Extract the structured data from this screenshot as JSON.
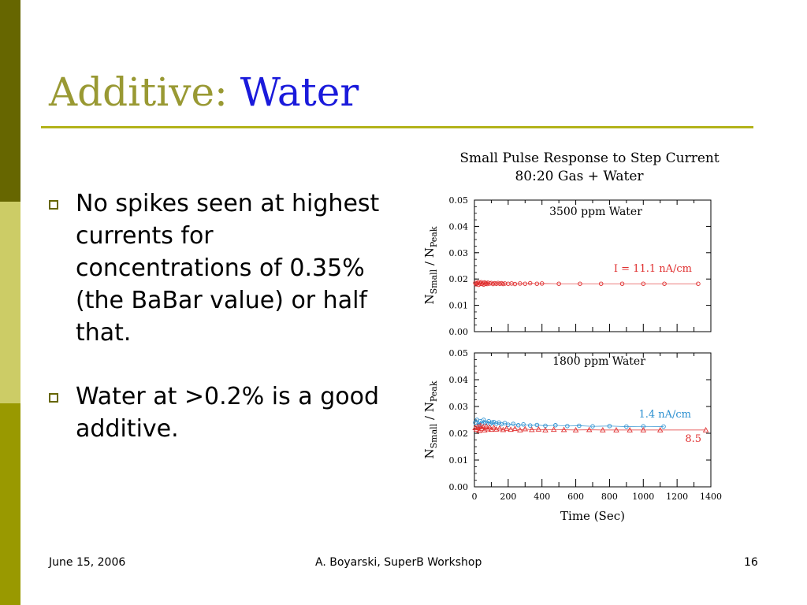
{
  "slide": {
    "title_part1": "Additive:",
    "title_part2": "Water",
    "bullets": [
      "No spikes seen at highest currents for concentrations of 0.35% (the BaBar value) or half that.",
      "Water at >0.2% is a good additive."
    ],
    "footer": {
      "date": "June 15, 2006",
      "author": "A. Boyarski,  SuperB Workshop",
      "page": "16"
    }
  },
  "colors": {
    "sidebar": [
      "#666600",
      "#cccc66",
      "#999900"
    ],
    "title_part1": "#999933",
    "title_part2": "#1a1adb",
    "rule": "#b3b31a",
    "red_series": "#e03030",
    "blue_series": "#2a8fd0"
  },
  "chart_data": [
    {
      "type": "scatter",
      "title": "Small Pulse Response to Step Current",
      "subtitle": "80:20 Gas  +  Water",
      "panel_label": "3500 ppm   Water",
      "ylabel_main": "N",
      "ylabel_sub1": "Small",
      "ylabel_mid": " / N",
      "ylabel_sub2": "Peak",
      "xlim": [
        0,
        1400
      ],
      "ylim": [
        0,
        0.05
      ],
      "yticks": [
        "0.00",
        "0.01",
        "0.02",
        "0.03",
        "0.04",
        "0.05"
      ],
      "series": [
        {
          "name": "I = 11.1 nA/cm",
          "color": "#e03030",
          "marker": "circle",
          "x": [
            5,
            10,
            15,
            20,
            25,
            30,
            35,
            40,
            45,
            50,
            55,
            60,
            65,
            70,
            75,
            80,
            90,
            100,
            110,
            120,
            130,
            140,
            150,
            160,
            170,
            180,
            200,
            220,
            240,
            270,
            300,
            330,
            370,
            400,
            500,
            625,
            750,
            875,
            1000,
            1125,
            1325
          ],
          "y": [
            0.0185,
            0.018,
            0.0183,
            0.0187,
            0.0178,
            0.0186,
            0.0182,
            0.0188,
            0.0181,
            0.0185,
            0.0179,
            0.0187,
            0.0182,
            0.0184,
            0.0181,
            0.0186,
            0.0183,
            0.0185,
            0.0181,
            0.0184,
            0.0182,
            0.0185,
            0.0182,
            0.0184,
            0.0181,
            0.0183,
            0.0182,
            0.0183,
            0.0181,
            0.0183,
            0.0182,
            0.0184,
            0.0182,
            0.0183,
            0.0182,
            0.0182,
            0.0182,
            0.0182,
            0.0182,
            0.0182,
            0.0182
          ]
        }
      ]
    },
    {
      "type": "scatter",
      "panel_label": "1800 ppm   Water",
      "ylabel_main": "N",
      "ylabel_sub1": "Small",
      "ylabel_mid": " / N",
      "ylabel_sub2": "Peak",
      "xlabel": "Time (Sec)",
      "xlim": [
        0,
        1400
      ],
      "ylim": [
        0,
        0.05
      ],
      "xticks": [
        "0",
        "200",
        "400",
        "600",
        "800",
        "1000",
        "1200",
        "1400"
      ],
      "yticks": [
        "0.00",
        "0.01",
        "0.02",
        "0.03",
        "0.04",
        "0.05"
      ],
      "series": [
        {
          "name": "1.4 nA/cm",
          "color": "#2a8fd0",
          "marker": "circle",
          "x": [
            5,
            15,
            25,
            35,
            45,
            55,
            65,
            75,
            85,
            95,
            105,
            115,
            130,
            145,
            160,
            180,
            200,
            230,
            260,
            290,
            330,
            370,
            420,
            480,
            550,
            620,
            700,
            800,
            900,
            1000,
            1120
          ],
          "y": [
            0.024,
            0.025,
            0.023,
            0.0245,
            0.0235,
            0.025,
            0.024,
            0.0238,
            0.0245,
            0.0235,
            0.024,
            0.0242,
            0.0236,
            0.024,
            0.0234,
            0.0238,
            0.0232,
            0.0235,
            0.023,
            0.0233,
            0.0229,
            0.0231,
            0.0228,
            0.023,
            0.0227,
            0.0228,
            0.0226,
            0.0227,
            0.0225,
            0.0226,
            0.0225
          ]
        },
        {
          "name": "8.5",
          "color": "#e03030",
          "marker": "triangle",
          "x": [
            5,
            12,
            20,
            28,
            36,
            44,
            52,
            60,
            70,
            80,
            90,
            100,
            115,
            130,
            150,
            170,
            190,
            215,
            240,
            270,
            300,
            340,
            380,
            420,
            470,
            530,
            600,
            680,
            760,
            840,
            920,
            1000,
            1100,
            1370
          ],
          "y": [
            0.022,
            0.0215,
            0.0225,
            0.021,
            0.0228,
            0.0218,
            0.0224,
            0.0212,
            0.0226,
            0.0216,
            0.0222,
            0.0214,
            0.0221,
            0.0215,
            0.0219,
            0.0213,
            0.0218,
            0.0214,
            0.0217,
            0.0212,
            0.0216,
            0.0213,
            0.0215,
            0.0212,
            0.0214,
            0.0213,
            0.0212,
            0.0213,
            0.0212,
            0.0212,
            0.0212,
            0.0212,
            0.0212,
            0.0212
          ]
        }
      ]
    }
  ]
}
